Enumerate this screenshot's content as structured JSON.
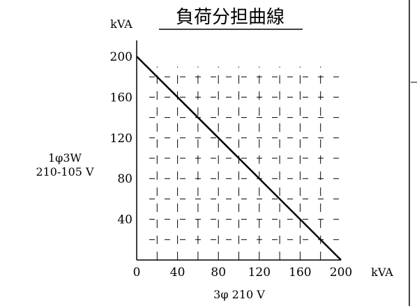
{
  "chart_data": {
    "type": "line",
    "title": "負荷分担曲線",
    "xlabel": "3φ 210 V",
    "ylabel_lines": [
      "1φ3W",
      "210-105 V"
    ],
    "x_unit": "kVA",
    "y_unit": "kVA",
    "xlim": [
      0,
      200
    ],
    "ylim": [
      0,
      200
    ],
    "x_ticks": [
      0,
      40,
      80,
      120,
      160,
      200
    ],
    "y_ticks": [
      40,
      80,
      120,
      160,
      200
    ],
    "grid": true,
    "grid_style": "dashed",
    "series": [
      {
        "x": [
          0,
          200
        ],
        "y": [
          200,
          0
        ]
      }
    ],
    "colors": {
      "line": "#000000",
      "grid": "#000000",
      "axis": "#000000",
      "background": "#ffffff"
    }
  }
}
